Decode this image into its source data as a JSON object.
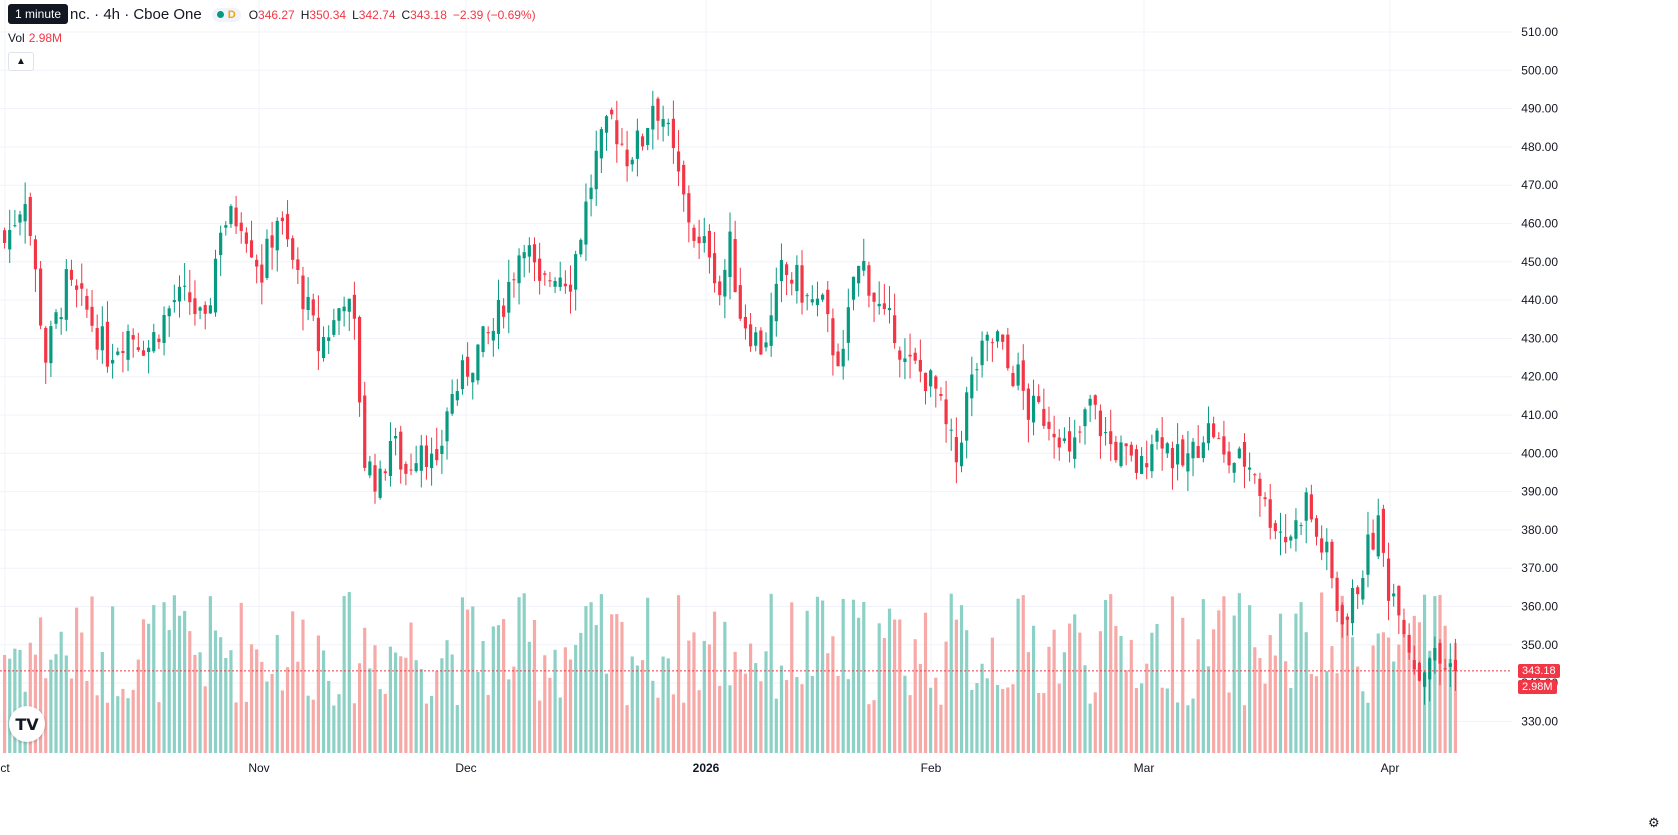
{
  "tooltip": "1 minute",
  "header": {
    "title": "nc. · 4h · Cboe One",
    "interval_badge": "D",
    "open_label": "O",
    "open": "346.27",
    "high_label": "H",
    "high": "350.34",
    "low_label": "L",
    "low": "342.74",
    "close_label": "C",
    "close": "343.18",
    "change": "−2.39 (−0.69%)"
  },
  "volume": {
    "label": "Vol",
    "value": "2.98M"
  },
  "price_badge": "343.18",
  "volume_badge": "2.98M",
  "icons": {
    "collapse": "chevron-up-icon",
    "logo": "tradingview-logo",
    "settings": "gear-icon"
  },
  "logo_text": "TV",
  "colors": {
    "up": "#089981",
    "down": "#f23645",
    "up_vol": "#8dd1c6",
    "down_vol": "#f7a9a7",
    "grid": "#f0f3fa"
  },
  "chart_data": {
    "type": "candlestick",
    "y_axis": {
      "min": 320,
      "max": 515,
      "ticks": [
        510,
        500,
        490,
        480,
        470,
        460,
        450,
        440,
        430,
        420,
        410,
        400,
        390,
        380,
        370,
        360,
        350,
        340,
        330
      ],
      "scale": "linear",
      "side": "right"
    },
    "x_axis": {
      "labels": [
        "ct",
        "Nov",
        "Dec",
        "2026",
        "Feb",
        "Mar",
        "Apr"
      ]
    },
    "last_close": 343.18,
    "anchors": [
      [
        0,
        455
      ],
      [
        4,
        468
      ],
      [
        8,
        425
      ],
      [
        12,
        444
      ],
      [
        16,
        437
      ],
      [
        20,
        426
      ],
      [
        24,
        432
      ],
      [
        28,
        428
      ],
      [
        33,
        440
      ],
      [
        36,
        440
      ],
      [
        39,
        432
      ],
      [
        42,
        460
      ],
      [
        46,
        462
      ],
      [
        50,
        447
      ],
      [
        53,
        462
      ],
      [
        56,
        450
      ],
      [
        59,
        437
      ],
      [
        61,
        428
      ],
      [
        64,
        434
      ],
      [
        66,
        442
      ],
      [
        68,
        432
      ],
      [
        70,
        398
      ],
      [
        73,
        392
      ],
      [
        75,
        404
      ],
      [
        78,
        395
      ],
      [
        81,
        404
      ],
      [
        84,
        394
      ],
      [
        86,
        412
      ],
      [
        89,
        420
      ],
      [
        92,
        427
      ],
      [
        95,
        432
      ],
      [
        98,
        444
      ],
      [
        101,
        457
      ],
      [
        104,
        442
      ],
      [
        107,
        448
      ],
      [
        110,
        446
      ],
      [
        112,
        458
      ],
      [
        115,
        477
      ],
      [
        118,
        487
      ],
      [
        121,
        478
      ],
      [
        124,
        482
      ],
      [
        126,
        492
      ],
      [
        128,
        488
      ],
      [
        130,
        477
      ],
      [
        132,
        466
      ],
      [
        135,
        453
      ],
      [
        137,
        454
      ],
      [
        139,
        442
      ],
      [
        141,
        454
      ],
      [
        143,
        437
      ],
      [
        145,
        432
      ],
      [
        147,
        428
      ],
      [
        149,
        434
      ],
      [
        151,
        447
      ],
      [
        154,
        445
      ],
      [
        156,
        440
      ],
      [
        159,
        438
      ],
      [
        161,
        428
      ],
      [
        163,
        424
      ],
      [
        165,
        446
      ],
      [
        167,
        449
      ],
      [
        169,
        441
      ],
      [
        171,
        434
      ],
      [
        173,
        433
      ],
      [
        175,
        423
      ],
      [
        177,
        422
      ],
      [
        179,
        420
      ],
      [
        181,
        416
      ],
      [
        183,
        406
      ],
      [
        185,
        398
      ],
      [
        187,
        414
      ],
      [
        189,
        423
      ],
      [
        191,
        428
      ],
      [
        193,
        430
      ],
      [
        195,
        422
      ],
      [
        197,
        420
      ],
      [
        199,
        411
      ],
      [
        201,
        411
      ],
      [
        203,
        409
      ],
      [
        205,
        406
      ],
      [
        207,
        398
      ],
      [
        209,
        405
      ],
      [
        211,
        413
      ],
      [
        213,
        407
      ],
      [
        215,
        402
      ],
      [
        217,
        400
      ],
      [
        219,
        397
      ],
      [
        221,
        396
      ],
      [
        223,
        405
      ],
      [
        225,
        405
      ],
      [
        227,
        399
      ],
      [
        229,
        397
      ],
      [
        231,
        400
      ],
      [
        233,
        406
      ],
      [
        235,
        406
      ],
      [
        237,
        398
      ],
      [
        239,
        398
      ],
      [
        241,
        398
      ],
      [
        243,
        396
      ],
      [
        245,
        386
      ],
      [
        247,
        382
      ],
      [
        249,
        378
      ],
      [
        251,
        381
      ],
      [
        253,
        388
      ],
      [
        255,
        378
      ],
      [
        257,
        373
      ],
      [
        259,
        360
      ],
      [
        261,
        357
      ],
      [
        263,
        366
      ],
      [
        265,
        375
      ],
      [
        267,
        381
      ],
      [
        269,
        365
      ],
      [
        271,
        362
      ],
      [
        273,
        350
      ],
      [
        275,
        342
      ],
      [
        277,
        348
      ],
      [
        279,
        345
      ],
      [
        281,
        344.5
      ],
      [
        282,
        343.18
      ]
    ],
    "volume_max": 50
  }
}
